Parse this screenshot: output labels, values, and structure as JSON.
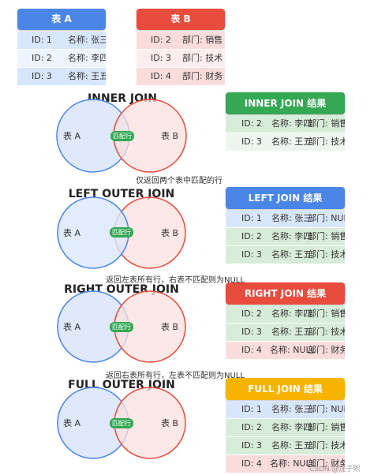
{
  "table_a": {
    "title": "表 A",
    "rows": [
      {
        "id": "ID: 1",
        "name": "名称: 张三"
      },
      {
        "id": "ID: 2",
        "name": "名称: 李四"
      },
      {
        "id": "ID: 3",
        "name": "名称: 王五"
      }
    ]
  },
  "table_b": {
    "title": "表 B",
    "rows": [
      {
        "id": "ID: 2",
        "dept": "部门: 销售"
      },
      {
        "id": "ID: 3",
        "dept": "部门: 技术"
      },
      {
        "id": "ID: 4",
        "dept": "部门: 财务"
      }
    ]
  },
  "circle_labels": {
    "a": "表 A",
    "b": "表 B",
    "overlap": "匹配行"
  },
  "joins": [
    {
      "title": "INNER JOIN",
      "caption": "仅返回两个表中匹配的行",
      "result_title": "INNER JOIN 结果",
      "rows": [
        {
          "id": "ID: 2",
          "name": "名称: 李四",
          "dept": "部门: 销售"
        },
        {
          "id": "ID: 3",
          "name": "名称: 王五",
          "dept": "部门: 技术"
        }
      ]
    },
    {
      "title": "LEFT OUTER JOIN",
      "caption": "返回左表所有行，右表不匹配则为NULL",
      "result_title": "LEFT JOIN 结果",
      "rows": [
        {
          "id": "ID: 1",
          "name": "名称: 张三",
          "dept": "部门: NULL"
        },
        {
          "id": "ID: 2",
          "name": "名称: 李四",
          "dept": "部门: 销售"
        },
        {
          "id": "ID: 3",
          "name": "名称: 王五",
          "dept": "部门: 技术"
        }
      ]
    },
    {
      "title": "RIGHT OUTER JOIN",
      "caption": "返回右表所有行，左表不匹配则为NULL",
      "result_title": "RIGHT JOIN 结果",
      "rows": [
        {
          "id": "ID: 2",
          "name": "名称: 李四",
          "dept": "部门: 销售"
        },
        {
          "id": "ID: 3",
          "name": "名称: 王五",
          "dept": "部门: 技术"
        },
        {
          "id": "ID: 4",
          "name": "名称: NULL",
          "dept": "部门: 财务"
        }
      ]
    },
    {
      "title": "FULL OUTER JOIN",
      "caption": "",
      "result_title": "FULL JOIN 结果",
      "rows": [
        {
          "id": "ID: 1",
          "name": "名称: 张三",
          "dept": "部门: NULL"
        },
        {
          "id": "ID: 2",
          "name": "名称: 李四",
          "dept": "部门: 销售"
        },
        {
          "id": "ID: 3",
          "name": "名称: 王五",
          "dept": "部门: 技术"
        },
        {
          "id": "ID: 4",
          "name": "名称: NULL",
          "dept": "部门: 财务"
        }
      ]
    }
  ],
  "watermark": "CSDN @汪子熙",
  "colors": {
    "table_a_header": "#4a86e8",
    "table_b_header": "#e74c3c",
    "inner_header": "#34a853",
    "left_header": "#4a86e8",
    "right_header": "#e74c3c",
    "full_header": "#f6b400",
    "circle_a_fill": "#dbe7fb",
    "circle_a_stroke": "#4a86e8",
    "circle_b_fill": "#fbe0df",
    "circle_b_stroke": "#e74c3c",
    "overlap_badge": "#34a853"
  }
}
